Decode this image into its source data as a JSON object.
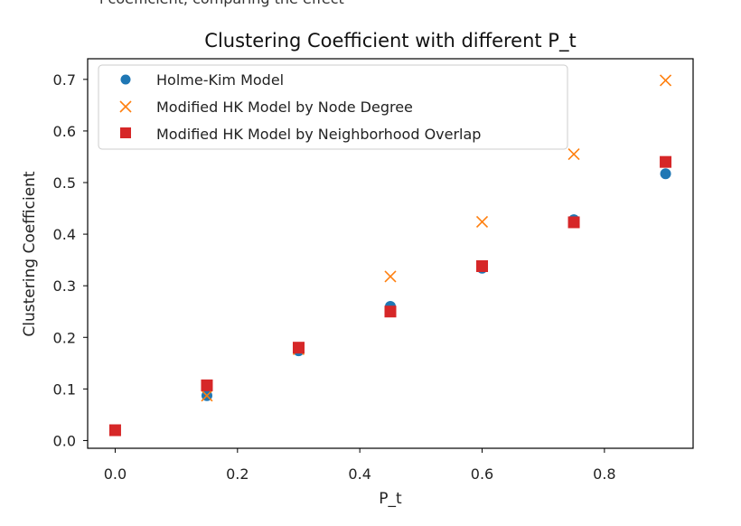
{
  "page": {
    "cropped_top_text": "l coefficient, comparing the effect"
  },
  "colors": {
    "holme_kim": "#1f77b4",
    "node_degree": "#ff7f0e",
    "neighborhood_overlap": "#d62728",
    "axis": "#000000"
  },
  "chart_data": {
    "type": "scatter",
    "title": "Clustering Coefficient with different P_t",
    "xlabel": "P_t",
    "ylabel": "Clustering Coefficient",
    "xlim": [
      -0.045,
      0.945
    ],
    "ylim": [
      -0.015,
      0.74
    ],
    "xticks": [
      0.0,
      0.2,
      0.4,
      0.6,
      0.8
    ],
    "xtick_labels": [
      "0.0",
      "0.2",
      "0.4",
      "0.6",
      "0.8"
    ],
    "yticks": [
      0.0,
      0.1,
      0.2,
      0.3,
      0.4,
      0.5,
      0.6,
      0.7
    ],
    "ytick_labels": [
      "0.0",
      "0.1",
      "0.2",
      "0.3",
      "0.4",
      "0.5",
      "0.6",
      "0.7"
    ],
    "grid": false,
    "legend_position": "top-left",
    "x": [
      0.0,
      0.15,
      0.3,
      0.45,
      0.6,
      0.75,
      0.9
    ],
    "series": [
      {
        "name": "Holme-Kim Model",
        "marker": "circle",
        "color": "#1f77b4",
        "values": [
          0.02,
          0.087,
          0.174,
          0.26,
          0.334,
          0.428,
          0.517
        ]
      },
      {
        "name": "Modified HK Model by Node Degree",
        "marker": "x",
        "color": "#ff7f0e",
        "values": [
          0.02,
          0.087,
          0.177,
          0.318,
          0.424,
          0.555,
          0.698
        ]
      },
      {
        "name": "Modified HK Model by Neighborhood Overlap",
        "marker": "square",
        "color": "#d62728",
        "values": [
          0.02,
          0.107,
          0.18,
          0.25,
          0.338,
          0.423,
          0.54
        ]
      }
    ]
  }
}
